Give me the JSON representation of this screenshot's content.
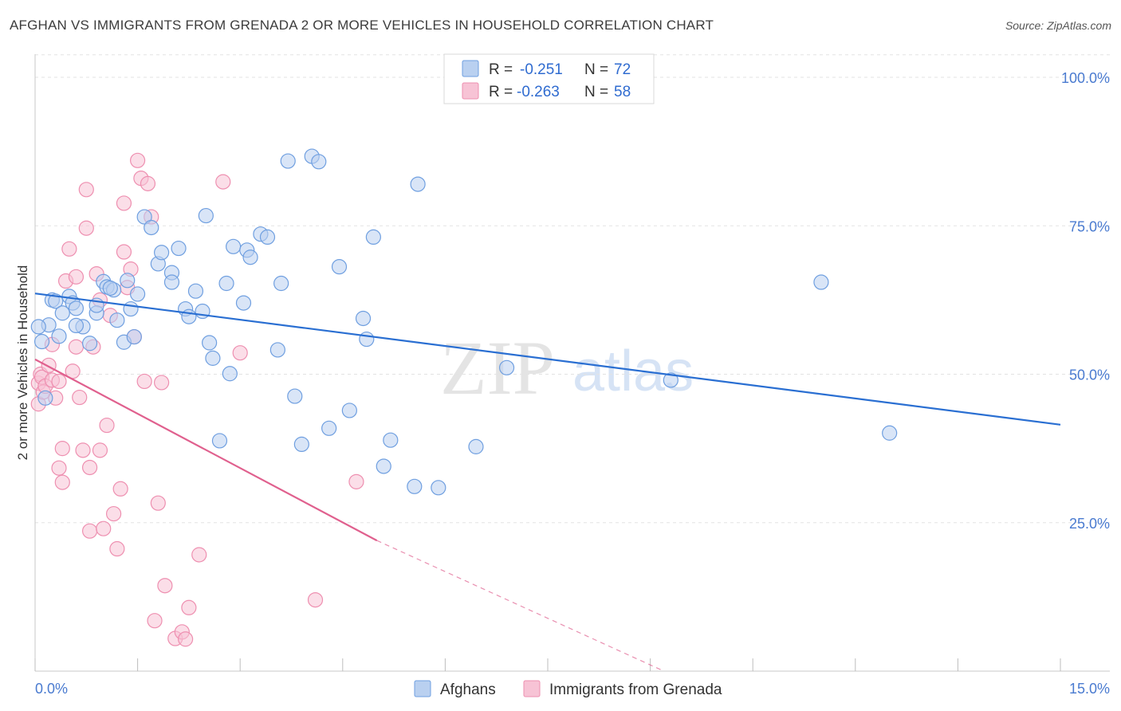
{
  "chart_data": {
    "type": "scatter",
    "title": "AFGHAN VS IMMIGRANTS FROM GRENADA 2 OR MORE VEHICLES IN HOUSEHOLD CORRELATION CHART",
    "source": "Source: ZipAtlas.com",
    "xlabel": "",
    "ylabel": "2 or more Vehicles in Household",
    "xlim": [
      0,
      15
    ],
    "ylim": [
      0,
      105
    ],
    "x_tick_labels": {
      "min": "0.0%",
      "max": "15.0%"
    },
    "y_ticks": [
      25,
      50,
      75,
      100
    ],
    "y_tick_labels": [
      "25.0%",
      "50.0%",
      "75.0%",
      "100.0%"
    ],
    "grid": true,
    "watermark": {
      "zip": "ZIP",
      "atlas": "atlas"
    },
    "legend": {
      "position": "top-center",
      "r_label": "R =",
      "n_label": "N =",
      "rows": [
        {
          "r": "-0.251",
          "n": "72"
        },
        {
          "r": "-0.263",
          "n": "58"
        }
      ]
    },
    "series": [
      {
        "name": "Afghans",
        "color": "#6f9fe0",
        "fill": "#b9d0f0",
        "line_color": "#2a6fd2",
        "trend": {
          "x0": 0.0,
          "y0": 63.6,
          "x1": 15.0,
          "y1": 41.5
        },
        "points": [
          [
            0.1,
            55.5
          ],
          [
            0.15,
            46.0
          ],
          [
            0.2,
            58.3
          ],
          [
            0.25,
            62.5
          ],
          [
            0.3,
            62.3
          ],
          [
            0.35,
            56.4
          ],
          [
            0.4,
            60.3
          ],
          [
            0.5,
            63.1
          ],
          [
            0.55,
            62.0
          ],
          [
            0.6,
            61.1
          ],
          [
            0.7,
            58.0
          ],
          [
            0.8,
            55.2
          ],
          [
            0.9,
            60.3
          ],
          [
            0.9,
            61.6
          ],
          [
            1.0,
            65.6
          ],
          [
            1.05,
            64.7
          ],
          [
            1.15,
            64.2
          ],
          [
            1.2,
            59.1
          ],
          [
            1.3,
            55.4
          ],
          [
            1.35,
            65.8
          ],
          [
            1.4,
            61.0
          ],
          [
            1.45,
            56.3
          ],
          [
            1.5,
            63.5
          ],
          [
            1.6,
            76.5
          ],
          [
            1.7,
            74.7
          ],
          [
            1.8,
            68.6
          ],
          [
            1.85,
            70.5
          ],
          [
            2.0,
            67.1
          ],
          [
            2.0,
            65.5
          ],
          [
            2.1,
            71.2
          ],
          [
            2.2,
            61.0
          ],
          [
            2.25,
            59.7
          ],
          [
            2.35,
            64.0
          ],
          [
            2.45,
            60.6
          ],
          [
            2.5,
            76.7
          ],
          [
            2.55,
            55.3
          ],
          [
            2.6,
            52.7
          ],
          [
            2.7,
            38.8
          ],
          [
            2.8,
            65.3
          ],
          [
            2.85,
            50.1
          ],
          [
            2.9,
            71.5
          ],
          [
            3.05,
            62.0
          ],
          [
            3.1,
            70.9
          ],
          [
            3.15,
            69.7
          ],
          [
            3.3,
            73.6
          ],
          [
            3.4,
            73.1
          ],
          [
            3.55,
            54.1
          ],
          [
            3.6,
            65.3
          ],
          [
            3.7,
            85.9
          ],
          [
            3.8,
            46.3
          ],
          [
            3.9,
            38.2
          ],
          [
            4.05,
            86.7
          ],
          [
            4.15,
            85.8
          ],
          [
            4.3,
            40.9
          ],
          [
            4.45,
            68.1
          ],
          [
            4.6,
            43.9
          ],
          [
            4.8,
            59.4
          ],
          [
            4.85,
            55.9
          ],
          [
            4.95,
            73.1
          ],
          [
            5.1,
            34.5
          ],
          [
            5.2,
            38.9
          ],
          [
            5.55,
            31.1
          ],
          [
            5.6,
            82.0
          ],
          [
            5.9,
            30.9
          ],
          [
            6.45,
            37.8
          ],
          [
            6.9,
            51.1
          ],
          [
            9.3,
            49.0
          ],
          [
            11.5,
            65.5
          ],
          [
            12.5,
            40.1
          ],
          [
            0.05,
            58.0
          ],
          [
            0.6,
            58.2
          ],
          [
            1.1,
            64.5
          ]
        ]
      },
      {
        "name": "Immigrants from Grenada",
        "color": "#ee8fb0",
        "fill": "#f7c3d5",
        "line_color": "#e0608e",
        "trend": {
          "x0": 0.0,
          "y0": 52.5,
          "x1": 5.0,
          "y1": 22.0
        },
        "trend_dash": {
          "x0": 5.0,
          "y0": 22.0,
          "x1": 9.2,
          "y1": 0.0
        },
        "points": [
          [
            0.05,
            45.0
          ],
          [
            0.05,
            48.5
          ],
          [
            0.08,
            50.0
          ],
          [
            0.1,
            49.5
          ],
          [
            0.12,
            47.0
          ],
          [
            0.15,
            48.0
          ],
          [
            0.2,
            51.5
          ],
          [
            0.25,
            49.0
          ],
          [
            0.25,
            55.0
          ],
          [
            0.3,
            46.0
          ],
          [
            0.35,
            48.8
          ],
          [
            0.35,
            34.2
          ],
          [
            0.4,
            37.5
          ],
          [
            0.4,
            31.8
          ],
          [
            0.45,
            65.7
          ],
          [
            0.5,
            71.1
          ],
          [
            0.55,
            50.5
          ],
          [
            0.6,
            66.4
          ],
          [
            0.6,
            54.6
          ],
          [
            0.65,
            46.1
          ],
          [
            0.7,
            37.2
          ],
          [
            0.75,
            81.1
          ],
          [
            0.75,
            74.6
          ],
          [
            0.8,
            34.3
          ],
          [
            0.8,
            23.6
          ],
          [
            0.85,
            54.6
          ],
          [
            0.9,
            66.9
          ],
          [
            0.95,
            62.5
          ],
          [
            0.95,
            37.2
          ],
          [
            1.0,
            24.0
          ],
          [
            1.05,
            41.4
          ],
          [
            1.1,
            59.9
          ],
          [
            1.15,
            26.5
          ],
          [
            1.2,
            20.6
          ],
          [
            1.25,
            30.7
          ],
          [
            1.3,
            70.6
          ],
          [
            1.3,
            78.8
          ],
          [
            1.35,
            64.6
          ],
          [
            1.4,
            67.7
          ],
          [
            1.45,
            56.3
          ],
          [
            1.5,
            86.0
          ],
          [
            1.55,
            83.0
          ],
          [
            1.6,
            48.8
          ],
          [
            1.65,
            82.1
          ],
          [
            1.7,
            76.5
          ],
          [
            1.75,
            8.5
          ],
          [
            1.8,
            28.3
          ],
          [
            1.85,
            48.6
          ],
          [
            1.9,
            14.4
          ],
          [
            2.05,
            5.5
          ],
          [
            2.15,
            6.6
          ],
          [
            2.2,
            5.4
          ],
          [
            2.25,
            10.7
          ],
          [
            2.4,
            19.6
          ],
          [
            2.75,
            82.4
          ],
          [
            3.0,
            53.6
          ],
          [
            4.1,
            12.0
          ],
          [
            4.7,
            31.9
          ]
        ]
      }
    ]
  }
}
